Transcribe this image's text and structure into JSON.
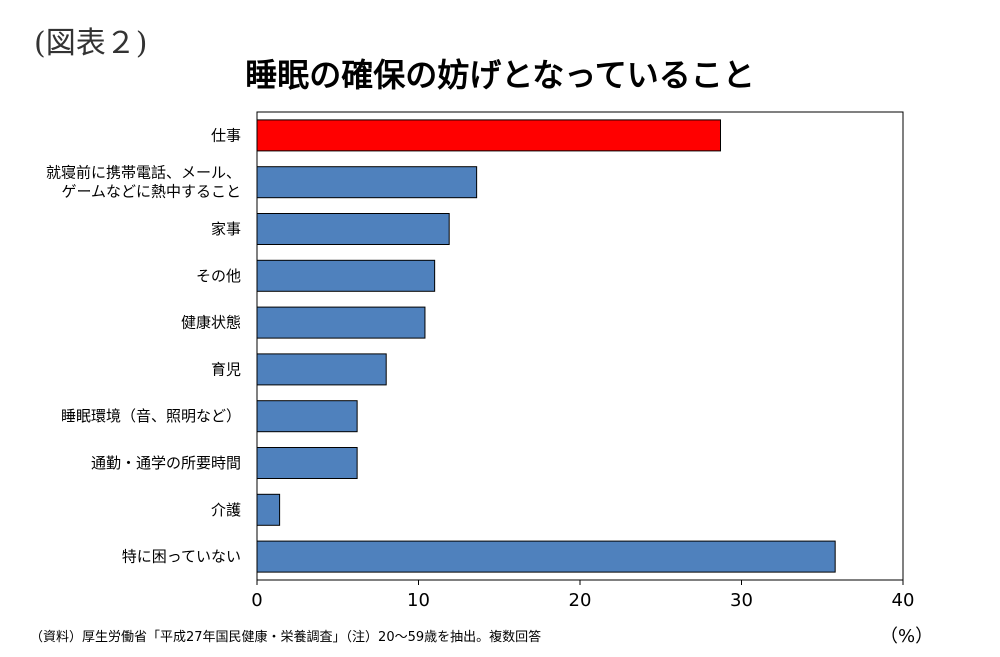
{
  "figure_label": "(図表２)",
  "source_note": "（資料）厚生労働省「平成27年国民健康・栄養調査」（注）20～59歳を抽出。複数回答",
  "colors": {
    "highlight": "#ff0000",
    "bar": "#4f81bd",
    "border": "#000000"
  },
  "chart_data": {
    "type": "bar",
    "orientation": "horizontal",
    "title": "睡眠の確保の妨げとなっていること",
    "unit_label": "（%）",
    "xlim": [
      0,
      40
    ],
    "xticks": [
      0,
      10,
      20,
      30,
      40
    ],
    "grid": false,
    "categories": [
      [
        "仕事"
      ],
      [
        "就寝前に携帯電話、メール、",
        "ゲームなどに熱中すること"
      ],
      [
        "家事"
      ],
      [
        "その他"
      ],
      [
        "健康状態"
      ],
      [
        "育児"
      ],
      [
        "睡眠環境（音、照明など）"
      ],
      [
        "通勤・通学の所要時間"
      ],
      [
        "介護"
      ],
      [
        "特に困っていない"
      ]
    ],
    "values": [
      28.7,
      13.6,
      11.9,
      11.0,
      10.4,
      8.0,
      6.2,
      6.2,
      1.4,
      35.8
    ],
    "highlight_index": 0
  }
}
